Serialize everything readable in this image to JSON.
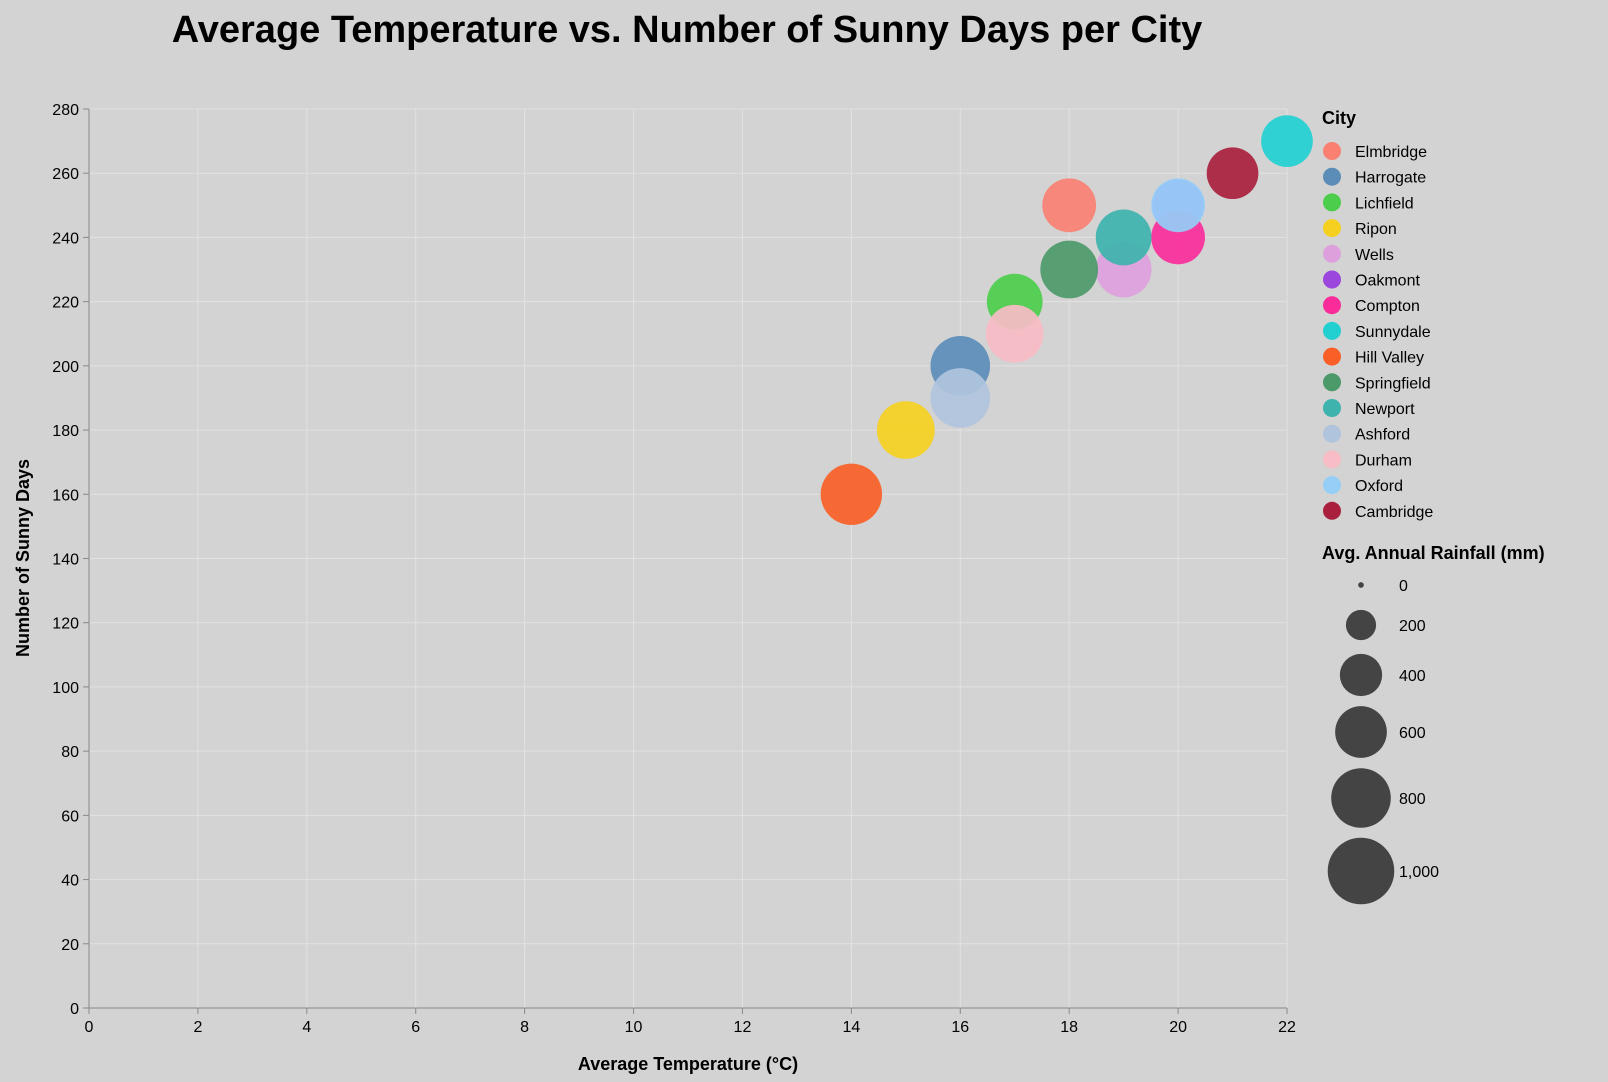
{
  "chart_data": {
    "type": "scatter",
    "title": "Average Temperature vs. Number of Sunny Days per City",
    "xlabel": "Average Temperature (°C)",
    "ylabel": "Number of Sunny Days",
    "xlim": [
      0,
      22
    ],
    "ylim": [
      0,
      280
    ],
    "x_ticks": [
      "0",
      "2",
      "4",
      "6",
      "8",
      "10",
      "12",
      "14",
      "16",
      "18",
      "20",
      "22"
    ],
    "y_ticks": [
      "0",
      "20",
      "40",
      "60",
      "80",
      "100",
      "120",
      "140",
      "160",
      "180",
      "200",
      "220",
      "240",
      "260",
      "280"
    ],
    "grid": true,
    "legend_placement": "right",
    "color_legend_title": "City",
    "size_legend_title": "Avg. Annual Rainfall (mm)",
    "size_legend_values": [
      0,
      200,
      400,
      600,
      800,
      1000
    ],
    "size_legend_labels": [
      "0",
      "200",
      "400",
      "600",
      "800",
      "1,000"
    ],
    "points": [
      {
        "city": "Elmbridge",
        "x": 18,
        "y": 250,
        "rainfall": 650,
        "color": "#fa8072"
      },
      {
        "city": "Harrogate",
        "x": 16,
        "y": 200,
        "rainfall": 800,
        "color": "#5b8db8"
      },
      {
        "city": "Lichfield",
        "x": 17,
        "y": 220,
        "rainfall": 700,
        "color": "#4cce4c"
      },
      {
        "city": "Ripon",
        "x": 15,
        "y": 180,
        "rainfall": 750,
        "color": "#f5d020"
      },
      {
        "city": "Wells",
        "x": 19,
        "y": 230,
        "rainfall": 700,
        "color": "#dda0dd"
      },
      {
        "city": "Oakmont",
        "x": 20,
        "y": 250,
        "rainfall": 600,
        "color": "#9b46dc"
      },
      {
        "city": "Compton",
        "x": 20,
        "y": 240,
        "rainfall": 650,
        "color": "#fa2c9a"
      },
      {
        "city": "Sunnydale",
        "x": 22,
        "y": 270,
        "rainfall": 600,
        "color": "#22d0d2"
      },
      {
        "city": "Hill Valley",
        "x": 14,
        "y": 160,
        "rainfall": 850,
        "color": "#f95f27"
      },
      {
        "city": "Springfield",
        "x": 18,
        "y": 230,
        "rainfall": 750,
        "color": "#4c9a69"
      },
      {
        "city": "Newport",
        "x": 19,
        "y": 240,
        "rainfall": 700,
        "color": "#3eb3ae"
      },
      {
        "city": "Ashford",
        "x": 16,
        "y": 190,
        "rainfall": 800,
        "color": "#b0c4de"
      },
      {
        "city": "Durham",
        "x": 17,
        "y": 210,
        "rainfall": 750,
        "color": "#f7bcc6"
      },
      {
        "city": "Oxford",
        "x": 20,
        "y": 250,
        "rainfall": 650,
        "color": "#95cff7"
      },
      {
        "city": "Cambridge",
        "x": 21,
        "y": 260,
        "rainfall": 600,
        "color": "#a91f3d"
      }
    ]
  }
}
